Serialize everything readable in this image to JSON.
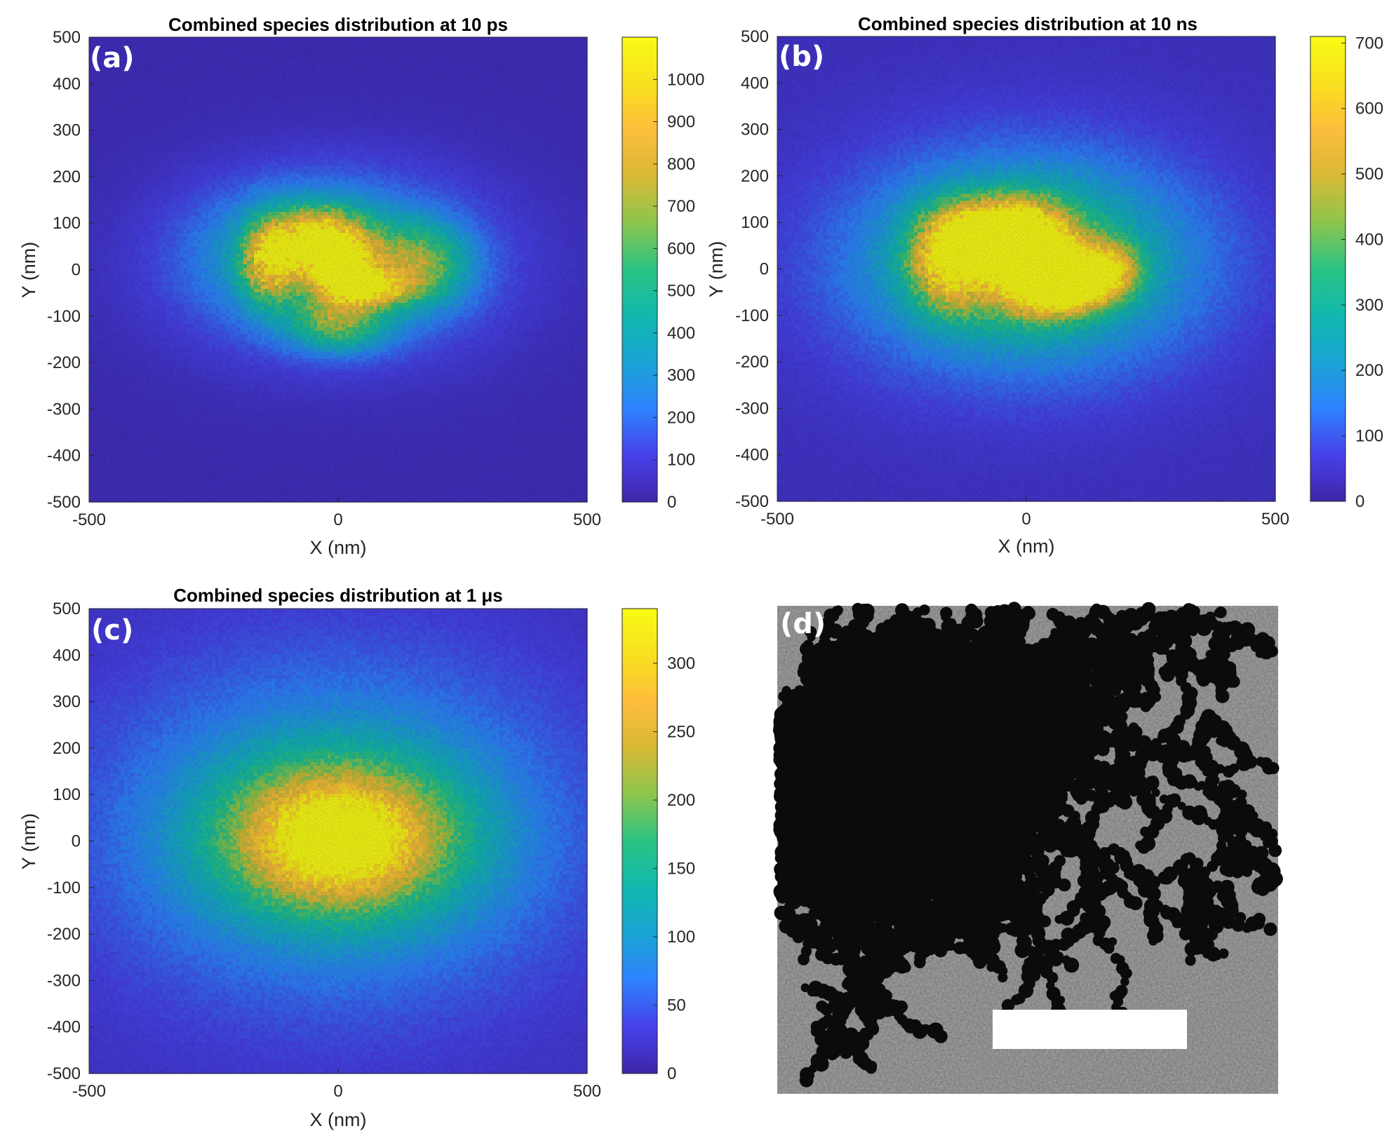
{
  "colormap": [
    "#3e26a8",
    "#4740e9",
    "#2e82fe",
    "#1aa4d4",
    "#12b8af",
    "#29c383",
    "#8cc54d",
    "#d8b935",
    "#fdbd3c",
    "#f8e01f",
    "#f9fb15"
  ],
  "micrograph": {
    "label": "(d)",
    "background": "#a8a8a8",
    "particle_color": "#0b0b0b",
    "scale_bar_color": "#ffffff"
  },
  "chart_data": [
    {
      "type": "heatmap",
      "panel": "(a)",
      "title": "Combined species distribution at 10 ps",
      "xlabel": "X (nm)",
      "ylabel": "Y (nm)",
      "xlim": [
        -500,
        500
      ],
      "ylim": [
        -500,
        500
      ],
      "xticks": [
        -500,
        0,
        500
      ],
      "yticks": [
        500,
        400,
        300,
        200,
        100,
        0,
        -100,
        -200,
        -300,
        -400,
        -500
      ],
      "colorbar": {
        "min": 0,
        "max": 1100,
        "ticks": [
          1000,
          900,
          800,
          700,
          600,
          500,
          400,
          300,
          200,
          100,
          0
        ]
      },
      "background_value": 40,
      "blobs": [
        {
          "cx": 0,
          "cy": 10,
          "sx": 230,
          "sy": 140,
          "value": 250
        },
        {
          "cx": -60,
          "cy": 35,
          "sx": 140,
          "sy": 90,
          "value": 250
        },
        {
          "cx": -140,
          "cy": 20,
          "sx": 35,
          "sy": 60,
          "value": 700
        },
        {
          "cx": -60,
          "cy": 60,
          "sx": 45,
          "sy": 45,
          "value": 750
        },
        {
          "cx": 10,
          "cy": 20,
          "sx": 45,
          "sy": 60,
          "value": 800
        },
        {
          "cx": 60,
          "cy": -40,
          "sx": 55,
          "sy": 25,
          "value": 650
        },
        {
          "cx": 0,
          "cy": 0,
          "sx": 15,
          "sy": 15,
          "value": 950
        },
        {
          "cx": 160,
          "cy": 10,
          "sx": 70,
          "sy": 60,
          "value": 450
        },
        {
          "cx": 0,
          "cy": -120,
          "sx": 70,
          "sy": 40,
          "value": 400
        }
      ]
    },
    {
      "type": "heatmap",
      "panel": "(b)",
      "title": "Combined species distribution at 10 ns",
      "xlabel": "X (nm)",
      "ylabel": "Y (nm)",
      "xlim": [
        -500,
        500
      ],
      "ylim": [
        -500,
        500
      ],
      "xticks": [
        -500,
        0,
        500
      ],
      "yticks": [
        500,
        400,
        300,
        200,
        100,
        0,
        -100,
        -200,
        -300,
        -400,
        -500
      ],
      "colorbar": {
        "min": 0,
        "max": 710,
        "ticks": [
          700,
          600,
          500,
          400,
          300,
          200,
          100,
          0
        ]
      },
      "background_value": 40,
      "blobs": [
        {
          "cx": 0,
          "cy": 10,
          "sx": 260,
          "sy": 175,
          "value": 200
        },
        {
          "cx": 0,
          "cy": 20,
          "sx": 190,
          "sy": 120,
          "value": 180
        },
        {
          "cx": -150,
          "cy": 20,
          "sx": 55,
          "sy": 70,
          "value": 520
        },
        {
          "cx": -60,
          "cy": 80,
          "sx": 65,
          "sy": 45,
          "value": 560
        },
        {
          "cx": 20,
          "cy": 20,
          "sx": 60,
          "sy": 70,
          "value": 600
        },
        {
          "cx": 80,
          "cy": -40,
          "sx": 60,
          "sy": 35,
          "value": 500
        },
        {
          "cx": 160,
          "cy": 0,
          "sx": 45,
          "sy": 40,
          "value": 380
        }
      ]
    },
    {
      "type": "heatmap",
      "panel": "(c)",
      "title": "Combined species distribution at 1 μs",
      "xlabel": "X (nm)",
      "ylabel": "Y (nm)",
      "xlim": [
        -500,
        500
      ],
      "ylim": [
        -500,
        500
      ],
      "xticks": [
        -500,
        0,
        500
      ],
      "yticks": [
        500,
        400,
        300,
        200,
        100,
        0,
        -100,
        -200,
        -300,
        -400,
        -500
      ],
      "colorbar": {
        "min": 0,
        "max": 340,
        "ticks": [
          300,
          250,
          200,
          150,
          100,
          50,
          0
        ]
      },
      "background_value": 20,
      "blobs": [
        {
          "cx": 0,
          "cy": 20,
          "sx": 330,
          "sy": 260,
          "value": 90
        },
        {
          "cx": 0,
          "cy": 10,
          "sx": 170,
          "sy": 115,
          "value": 200
        },
        {
          "cx": 0,
          "cy": 0,
          "sx": 110,
          "sy": 80,
          "value": 120
        }
      ]
    }
  ]
}
